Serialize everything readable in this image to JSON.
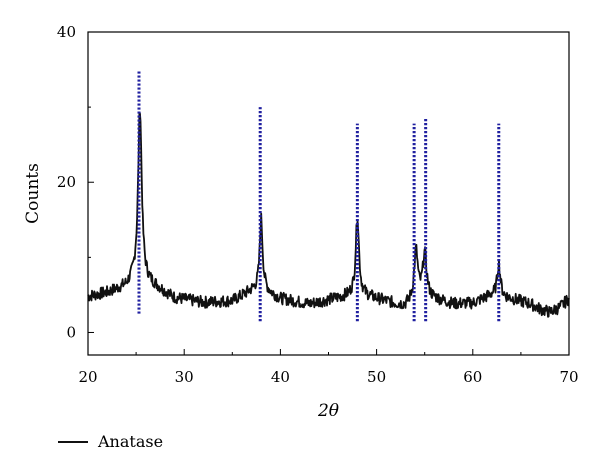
{
  "chart_data": {
    "type": "line",
    "title": "",
    "xlabel": "2θ",
    "ylabel": "Counts",
    "xlim": [
      20,
      70
    ],
    "ylim": [
      -3,
      40
    ],
    "xticks": [
      20,
      30,
      40,
      50,
      60,
      70
    ],
    "yticks": [
      0,
      20,
      40
    ],
    "grid": false,
    "legend_position": "bottom-left",
    "series": [
      {
        "name": "Anatase",
        "color": "#111111",
        "background": 4.5,
        "noise": 0.8,
        "baseline_points": [
          [
            20,
            4.8
          ],
          [
            22,
            5.3
          ],
          [
            24,
            6.2
          ],
          [
            25,
            7.5
          ],
          [
            27,
            6.2
          ],
          [
            29,
            4.6
          ],
          [
            32,
            4.0
          ],
          [
            35,
            4.2
          ],
          [
            37,
            5.6
          ],
          [
            38,
            6.0
          ],
          [
            40,
            4.5
          ],
          [
            43,
            3.8
          ],
          [
            46,
            4.6
          ],
          [
            48,
            5.2
          ],
          [
            50,
            4.5
          ],
          [
            52,
            3.8
          ],
          [
            53,
            3.6
          ],
          [
            54,
            4.6
          ],
          [
            56,
            4.5
          ],
          [
            58,
            3.8
          ],
          [
            60,
            3.9
          ],
          [
            62,
            5.0
          ],
          [
            64,
            4.5
          ],
          [
            66,
            3.8
          ],
          [
            67,
            3.1
          ],
          [
            68,
            2.7
          ],
          [
            69,
            3.3
          ],
          [
            70,
            4.5
          ]
        ],
        "peaks": [
          {
            "position": 25.4,
            "height": 30.0
          },
          {
            "position": 38.0,
            "height": 15.2
          },
          {
            "position": 48.0,
            "height": 15.6
          },
          {
            "position": 54.1,
            "height": 10.8
          },
          {
            "position": 55.0,
            "height": 10.4
          },
          {
            "position": 62.7,
            "height": 9.2
          }
        ]
      }
    ],
    "reference_lines": {
      "color": "#2020a0",
      "lines": [
        {
          "x": 25.3,
          "y_min": 2.5,
          "y_max": 34.8
        },
        {
          "x": 37.9,
          "y_min": 1.5,
          "y_max": 30.0
        },
        {
          "x": 48.0,
          "y_min": 1.5,
          "y_max": 27.8
        },
        {
          "x": 53.9,
          "y_min": 1.5,
          "y_max": 27.8
        },
        {
          "x": 55.1,
          "y_min": 1.5,
          "y_max": 28.5
        },
        {
          "x": 62.7,
          "y_min": 1.5,
          "y_max": 27.8
        }
      ]
    }
  }
}
